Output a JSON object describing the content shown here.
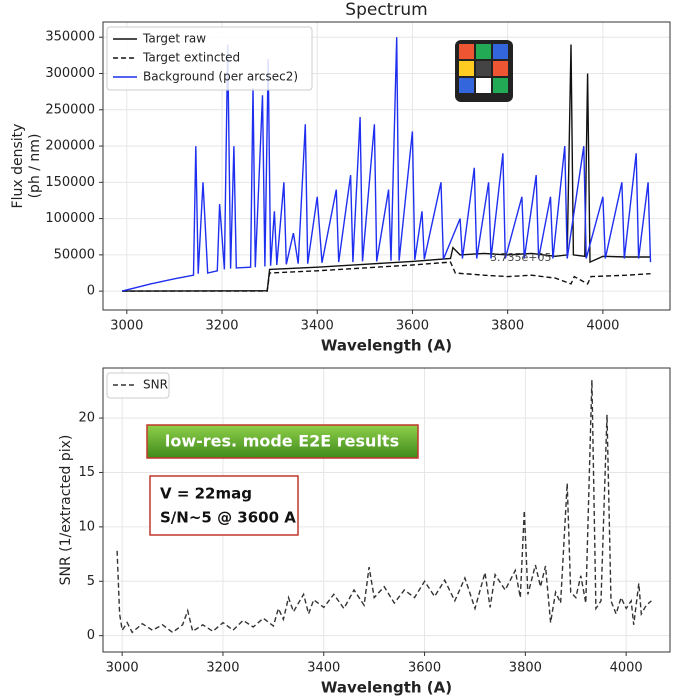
{
  "chart_data": [
    {
      "type": "line",
      "title": "Spectrum",
      "xlabel": "Wavelength (A)",
      "ylabel": [
        "Flux density",
        "(ph / nm)"
      ],
      "xlim": [
        2950,
        4141
      ],
      "ylim": [
        -26000,
        371000
      ],
      "xticks": [
        3000,
        3200,
        3400,
        3600,
        3800,
        4000
      ],
      "yticks": [
        0,
        50000,
        100000,
        150000,
        200000,
        250000,
        300000,
        350000
      ],
      "grid": true,
      "legend": "upper left",
      "annotations": [
        "3.735e+05"
      ],
      "series": [
        {
          "name": "Target raw",
          "color": "#111111",
          "linestyle": "solid",
          "x": [
            2990,
            3295,
            3300,
            3400,
            3500,
            3600,
            3680,
            3685,
            3700,
            3750,
            3800,
            3850,
            3900,
            3925,
            3933,
            3938,
            3962,
            3968,
            3973,
            4000,
            4050,
            4100
          ],
          "values": [
            0,
            500,
            30000,
            33000,
            37000,
            41000,
            45000,
            60000,
            50000,
            52000,
            50000,
            52000,
            48000,
            50000,
            340000,
            50000,
            48000,
            300000,
            40000,
            48000,
            47000,
            47000
          ]
        },
        {
          "name": "Target extincted",
          "color": "#111111",
          "linestyle": "dashed",
          "x": [
            2990,
            3295,
            3300,
            3400,
            3500,
            3600,
            3680,
            3690,
            3750,
            3800,
            3850,
            3900,
            3933,
            3940,
            3968,
            3975,
            4050,
            4100
          ],
          "values": [
            0,
            0,
            25000,
            28000,
            32000,
            36000,
            40000,
            25000,
            22000,
            20000,
            22000,
            18000,
            10000,
            20000,
            10000,
            20000,
            22000,
            24000
          ]
        },
        {
          "name": "Background (per arcsec2)",
          "color": "#1f2ff0",
          "linestyle": "solid",
          "x": [
            2990,
            3050,
            3100,
            3140,
            3145,
            3150,
            3160,
            3170,
            3190,
            3195,
            3205,
            3212,
            3218,
            3225,
            3230,
            3260,
            3265,
            3270,
            3285,
            3290,
            3297,
            3302,
            3310,
            3315,
            3330,
            3335,
            3350,
            3360,
            3375,
            3380,
            3400,
            3410,
            3440,
            3445,
            3470,
            3475,
            3490,
            3495,
            3520,
            3525,
            3550,
            3555,
            3567,
            3572,
            3600,
            3605,
            3620,
            3625,
            3660,
            3665,
            3700,
            3705,
            3730,
            3735,
            3760,
            3765,
            3790,
            3795,
            3830,
            3835,
            3860,
            3865,
            3890,
            3895,
            3920,
            3925,
            3960,
            3965,
            4000,
            4005,
            4040,
            4045,
            4070,
            4075,
            4095,
            4100
          ],
          "values": [
            0,
            10000,
            17000,
            22000,
            200000,
            24000,
            150000,
            25000,
            28000,
            120000,
            30000,
            340000,
            31000,
            200000,
            32000,
            33000,
            280000,
            33000,
            270000,
            34000,
            320000,
            35000,
            110000,
            36000,
            150000,
            37000,
            80000,
            38000,
            230000,
            38000,
            130000,
            39000,
            140000,
            40000,
            160000,
            40000,
            240000,
            41000,
            230000,
            41000,
            140000,
            42000,
            350000,
            42000,
            220000,
            43000,
            110000,
            44000,
            150000,
            44000,
            100000,
            45000,
            170000,
            45000,
            150000,
            45000,
            190000,
            45000,
            130000,
            45000,
            160000,
            45000,
            130000,
            45000,
            200000,
            45000,
            200000,
            45000,
            130000,
            45000,
            150000,
            45000,
            190000,
            45000,
            150000,
            40000
          ]
        }
      ]
    },
    {
      "type": "line",
      "xlabel": "Wavelength (A)",
      "ylabel": [
        "SNR (1/extracted pix)"
      ],
      "xlim": [
        2962,
        4087
      ],
      "ylim": [
        -1.5,
        24.6
      ],
      "xticks": [
        3000,
        3200,
        3400,
        3600,
        3800,
        4000
      ],
      "yticks": [
        0,
        5,
        10,
        15,
        20
      ],
      "grid": true,
      "legend": "upper left",
      "annotations": [
        "low-res. mode E2E  results",
        "V = 22mag",
        "S/N~5 @ 3600 A"
      ],
      "series": [
        {
          "name": "SNR",
          "color": "#333333",
          "linestyle": "dashed",
          "x": [
            2990,
            2995,
            3000,
            3010,
            3020,
            3040,
            3060,
            3080,
            3100,
            3120,
            3130,
            3140,
            3160,
            3180,
            3200,
            3220,
            3240,
            3260,
            3280,
            3300,
            3310,
            3320,
            3330,
            3340,
            3360,
            3370,
            3380,
            3400,
            3420,
            3440,
            3460,
            3480,
            3490,
            3500,
            3520,
            3540,
            3560,
            3580,
            3600,
            3620,
            3640,
            3660,
            3680,
            3700,
            3720,
            3730,
            3740,
            3760,
            3780,
            3790,
            3798,
            3805,
            3820,
            3830,
            3840,
            3850,
            3860,
            3870,
            3883,
            3890,
            3900,
            3910,
            3920,
            3932,
            3940,
            3950,
            3962,
            3970,
            3980,
            3990,
            4000,
            4010,
            4015,
            4025,
            4030,
            4040,
            4050
          ],
          "values": [
            7.8,
            2,
            0.5,
            1.2,
            0.3,
            1.1,
            0.5,
            1,
            0.3,
            1,
            2.3,
            0.4,
            1,
            0.4,
            1.2,
            0.5,
            1.4,
            0.8,
            1.6,
            0.9,
            2.5,
            1.5,
            3.5,
            2.2,
            3.8,
            2,
            3.3,
            2.6,
            3.8,
            2.5,
            4.2,
            2.8,
            6.3,
            3.5,
            4.5,
            3,
            4.2,
            3.5,
            5,
            3.6,
            5.1,
            3.2,
            5.3,
            2.5,
            5.8,
            2.6,
            5.6,
            4.2,
            6,
            3.5,
            11.5,
            3.8,
            6.5,
            4.5,
            6.4,
            1.2,
            4,
            3,
            14,
            4,
            3.5,
            5.5,
            3,
            23.5,
            2.5,
            3.2,
            20.3,
            3.2,
            2,
            3.5,
            2.5,
            3.2,
            1,
            4.8,
            2,
            2.8,
            3.2
          ]
        }
      ]
    }
  ]
}
